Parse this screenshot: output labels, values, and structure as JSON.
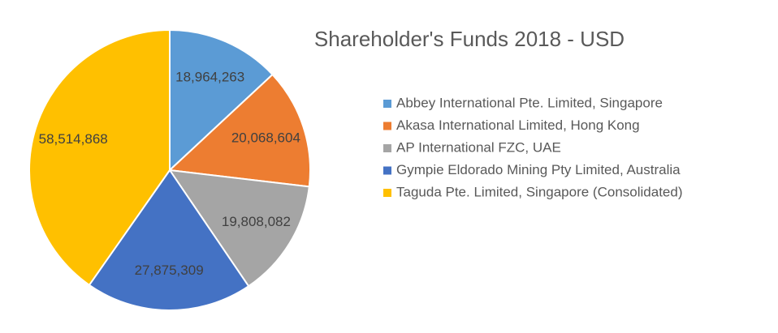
{
  "chart_data": {
    "type": "pie",
    "title": "Shareholder's Funds 2018 - USD",
    "categories": [
      "Abbey International Pte. Limited, Singapore",
      "Akasa International Limited, Hong Kong",
      "AP International FZC, UAE",
      "Gympie Eldorado Mining Pty Limited, Australia",
      "Taguda Pte. Limited, Singapore (Consolidated)"
    ],
    "values": [
      18964263,
      20068604,
      19808082,
      27875309,
      58514868
    ],
    "value_labels": [
      "18,964,263",
      "20,068,604",
      "19,808,082",
      "27,875,309",
      "58,514,868"
    ],
    "colors": [
      "#5b9bd5",
      "#ed7d31",
      "#a5a5a5",
      "#4472c4",
      "#ffc000"
    ],
    "legend": "right"
  }
}
